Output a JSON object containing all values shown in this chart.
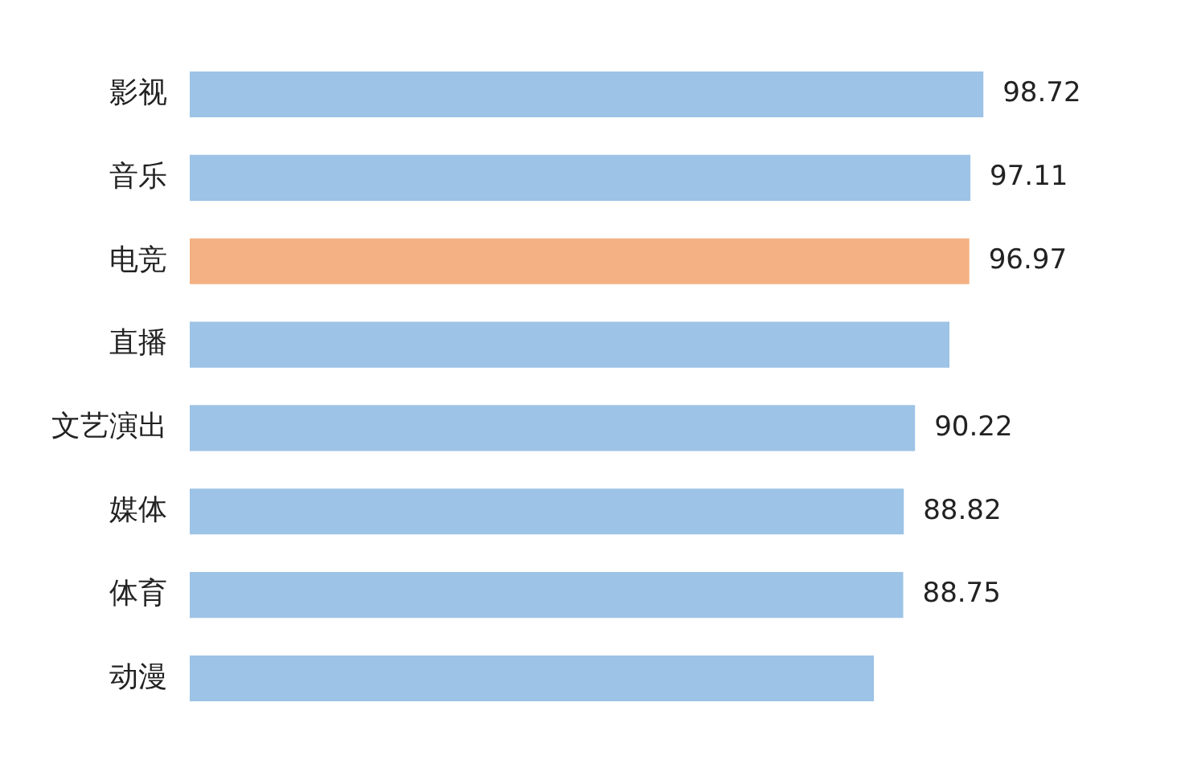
{
  "chart_data": {
    "type": "bar",
    "orientation": "horizontal",
    "categories": [
      "影视",
      "音乐",
      "电竞",
      "直播",
      "文艺演出",
      "媒体",
      "体育",
      "动漫"
    ],
    "values": [
      98.72,
      97.11,
      96.97,
      94.5,
      90.22,
      88.82,
      88.75,
      85.1
    ],
    "value_labels": [
      "98.72",
      "97.11",
      "96.97",
      null,
      "90.22",
      "88.82",
      "88.75",
      null
    ],
    "colors": [
      "#9dc3e6",
      "#9dc3e6",
      "#f4b183",
      "#9dc3e6",
      "#9dc3e6",
      "#9dc3e6",
      "#9dc3e6",
      "#9dc3e6"
    ],
    "legend": false
  }
}
